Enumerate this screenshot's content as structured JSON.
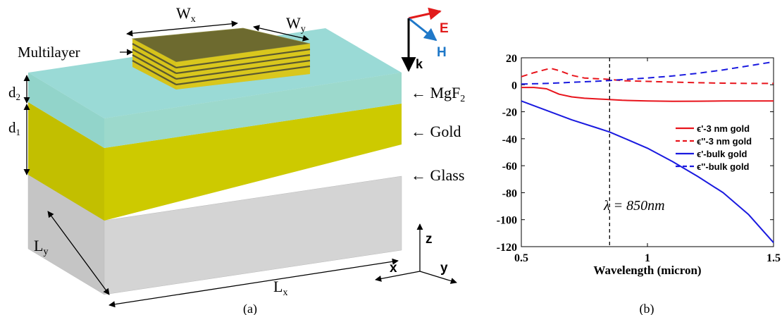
{
  "panel_a": {
    "caption": "(a)",
    "labels": {
      "wx_main": "W",
      "wx_sub": "x",
      "wy_main": "W",
      "wy_sub": "y",
      "multilayer": "Multilayer",
      "d2_main": "d",
      "d2_sub": "2",
      "d1_main": "d",
      "d1_sub": "1",
      "ly_main": "L",
      "ly_sub": "y",
      "lx_main": "L",
      "lx_sub": "x",
      "mgf2_prefix": "← MgF",
      "mgf2_sub": "2",
      "gold": "← Gold",
      "glass": "← Glass",
      "e_field": "E",
      "h_field": "H",
      "k_vec": "k",
      "axis_z": "z",
      "axis_x": "x",
      "axis_y": "y"
    },
    "colors": {
      "mgf2": "#7ccfca",
      "gold": "#cbc800",
      "glass": "#d2d2d2",
      "multilayer_dark": "#6f6a2a",
      "multilayer_stripe": "#e3d21c",
      "e_field": "#e11b1b",
      "h_field": "#1f78c8"
    }
  },
  "panel_b": {
    "caption": "(b)",
    "annotation": "λ = 850nm",
    "chart_data": {
      "type": "line",
      "xlabel": "Wavelength (micron)",
      "ylabel": "",
      "xlim": [
        0.5,
        1.5
      ],
      "ylim": [
        -120,
        20
      ],
      "x_ticks": [
        "0.5",
        "1",
        "1.5"
      ],
      "y_ticks": [
        "20",
        "0",
        "-20",
        "-40",
        "-60",
        "-80",
        "-100",
        "-120"
      ],
      "vertical_marker_x": 0.85,
      "grid": false,
      "legend_position": "right",
      "series": [
        {
          "name": "ϵ'-3 nm gold",
          "color": "#e8141c",
          "dash": "solid",
          "x": [
            0.5,
            0.55,
            0.6,
            0.65,
            0.7,
            0.75,
            0.8,
            0.85,
            0.9,
            1.0,
            1.1,
            1.2,
            1.3,
            1.4,
            1.5
          ],
          "y": [
            -2,
            -2,
            -3,
            -7,
            -9,
            -10,
            -10.5,
            -11,
            -11.5,
            -12,
            -12.3,
            -12.2,
            -12,
            -12,
            -12
          ]
        },
        {
          "name": "ϵ''-3 nm gold",
          "color": "#e8141c",
          "dash": "dashed",
          "x": [
            0.5,
            0.55,
            0.6,
            0.62,
            0.65,
            0.7,
            0.75,
            0.8,
            0.85,
            0.9,
            1.0,
            1.1,
            1.2,
            1.3,
            1.4,
            1.5
          ],
          "y": [
            6,
            9,
            11.5,
            12,
            10.5,
            7,
            5,
            4.5,
            4,
            3,
            2.5,
            2,
            1.5,
            1.2,
            1,
            1
          ]
        },
        {
          "name": "ϵ'-bulk gold",
          "color": "#1a1adf",
          "dash": "solid",
          "x": [
            0.5,
            0.6,
            0.7,
            0.8,
            0.85,
            0.9,
            1.0,
            1.1,
            1.2,
            1.3,
            1.4,
            1.5
          ],
          "y": [
            -12,
            -19,
            -26,
            -32,
            -35,
            -39,
            -47,
            -57,
            -68,
            -80,
            -96,
            -117
          ]
        },
        {
          "name": "ϵ''-bulk gold",
          "color": "#1a1adf",
          "dash": "dashed",
          "x": [
            0.5,
            0.6,
            0.7,
            0.8,
            0.85,
            0.9,
            1.0,
            1.1,
            1.2,
            1.3,
            1.4,
            1.5
          ],
          "y": [
            0.5,
            1,
            1.8,
            2.6,
            3.2,
            3.8,
            5,
            6.5,
            8.5,
            11,
            14,
            17
          ]
        }
      ]
    }
  }
}
